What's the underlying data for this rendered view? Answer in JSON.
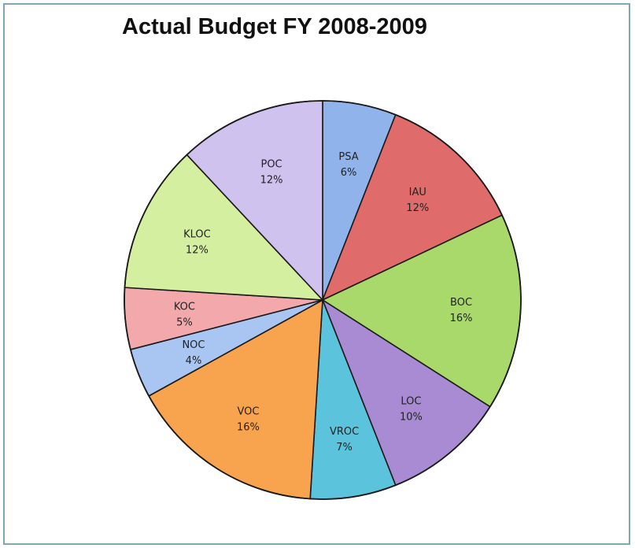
{
  "chart_data": {
    "type": "pie",
    "title": "Actual Budget FY 2008-2009",
    "slices": [
      {
        "label": "PSA",
        "percent_label": "6%",
        "value": 6,
        "color": "#8fb3ea"
      },
      {
        "label": "IAU",
        "percent_label": "12%",
        "value": 12,
        "color": "#e06b6b"
      },
      {
        "label": "BOC",
        "percent_label": "16%",
        "value": 16,
        "color": "#a9d96b"
      },
      {
        "label": "LOC",
        "percent_label": "10%",
        "value": 10,
        "color": "#a98bd3"
      },
      {
        "label": "VROC",
        "percent_label": "7%",
        "value": 7,
        "color": "#5cc3dd"
      },
      {
        "label": "VOC",
        "percent_label": "16%",
        "value": 16,
        "color": "#f8a44f"
      },
      {
        "label": "NOC",
        "percent_label": "4%",
        "value": 4,
        "color": "#a9c5f2"
      },
      {
        "label": "KOC",
        "percent_label": "5%",
        "value": 5,
        "color": "#f3a9ab"
      },
      {
        "label": "KLOC",
        "percent_label": "12%",
        "value": 12,
        "color": "#d4ef9f"
      },
      {
        "label": "POC",
        "percent_label": "12%",
        "value": 12,
        "color": "#cfc2ee"
      }
    ]
  }
}
